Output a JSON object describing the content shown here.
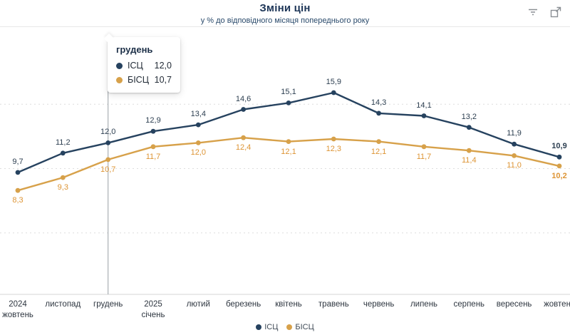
{
  "header": {
    "title": "Зміни цін",
    "subtitle": "у % до відповідного місяця попереднього року"
  },
  "toolbar": {
    "icons": [
      "filter-icon",
      "expand-icon"
    ]
  },
  "tooltip": {
    "title": "грудень",
    "rows": [
      {
        "name": "ІСЦ",
        "value": "12,0"
      },
      {
        "name": "БІСЦ",
        "value": "10,7"
      }
    ]
  },
  "legend": {
    "items": [
      {
        "label": "ІСЦ",
        "color": "#26425f"
      },
      {
        "label": "БІСЦ",
        "color": "#d7a14a"
      }
    ]
  },
  "chart_data": {
    "type": "line",
    "title": "Зміни цін",
    "subtitle": "у % до відповідного місяця попереднього року",
    "categories": [
      "2024\nжовтень",
      "листопад",
      "грудень",
      "2025\nсічень",
      "лютий",
      "березень",
      "квітень",
      "травень",
      "червень",
      "липень",
      "серпень",
      "вересень",
      "жовтень"
    ],
    "series": [
      {
        "name": "ІСЦ",
        "color": "#26425f",
        "label_color": "#2c3e50",
        "values": [
          9.7,
          11.2,
          12.0,
          12.9,
          13.4,
          14.6,
          15.1,
          15.9,
          14.3,
          14.1,
          13.2,
          11.9,
          10.9
        ]
      },
      {
        "name": "БІСЦ",
        "color": "#d7a14a",
        "label_color": "#dd9434",
        "values": [
          8.3,
          9.3,
          10.7,
          11.7,
          12.0,
          12.4,
          12.1,
          12.3,
          12.1,
          11.7,
          11.4,
          11.0,
          10.2
        ]
      }
    ],
    "highlight_index": 2,
    "highlighted_category": "грудень",
    "xlabel": "",
    "ylabel": "",
    "ylim": [
      0,
      19
    ],
    "gridline_values": [
      5,
      10,
      15
    ],
    "grid": "horizontal-dashed",
    "yticks_shown": false,
    "legend_position": "bottom",
    "decimal_separator": ","
  }
}
